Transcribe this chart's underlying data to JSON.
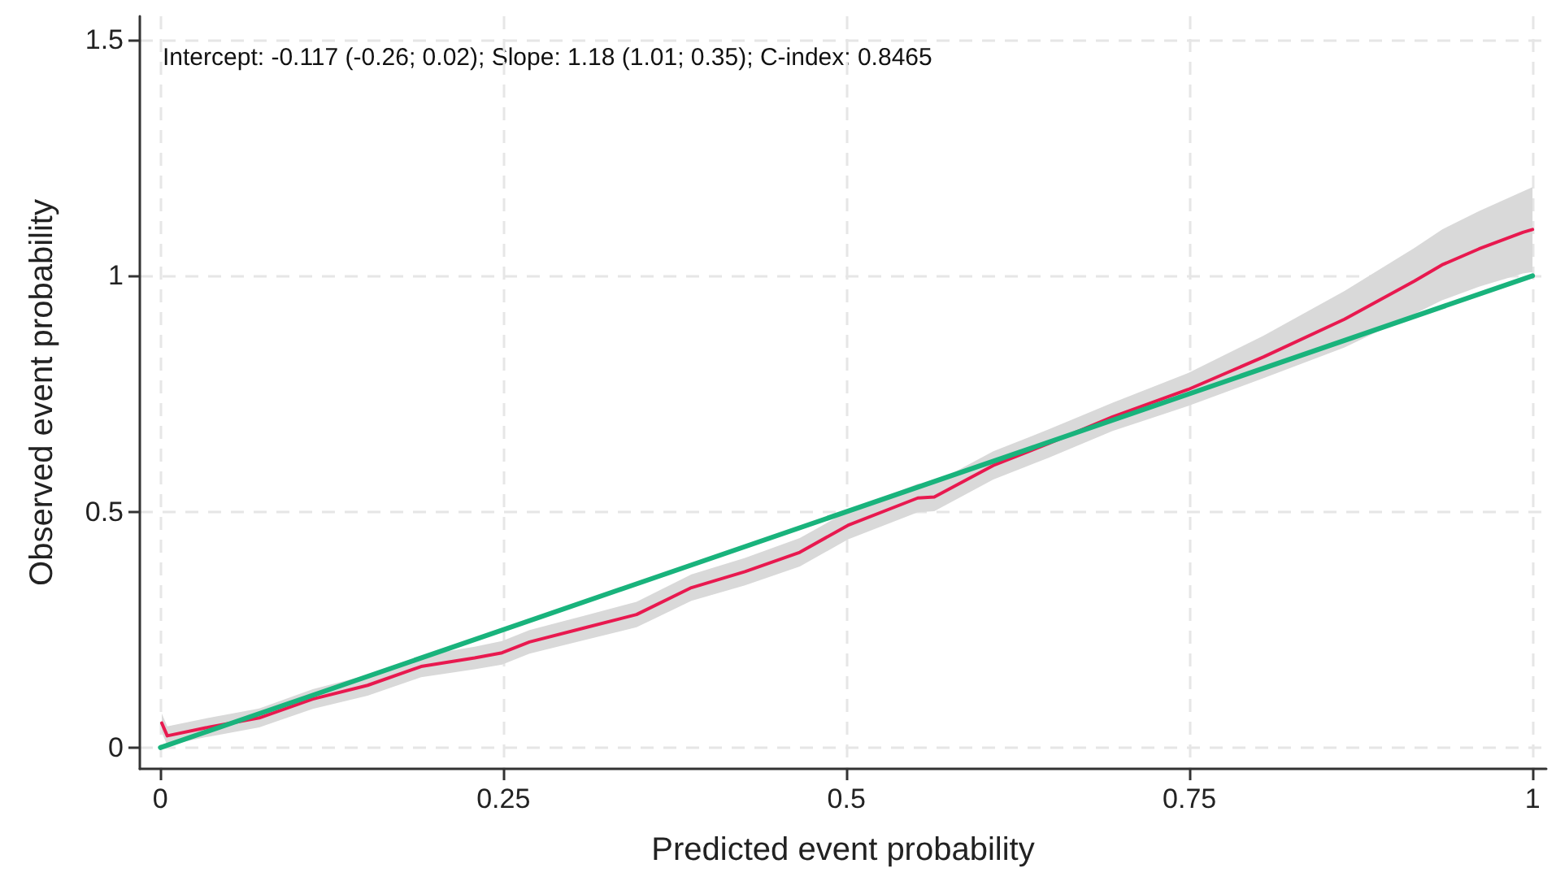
{
  "chart_data": {
    "type": "line",
    "xlabel": "Predicted event probability",
    "ylabel": "Observed event probability",
    "annotations": [
      "Intercept: -0.117 (-0.26; 0.02); Slope: 1.18 (1.01; 0.35); C-index: 0.8465"
    ],
    "series": [
      {
        "color": "#e8194f",
        "x": [
          0.001,
          0.005,
          0.033,
          0.072,
          0.111,
          0.151,
          0.19,
          0.229,
          0.249,
          0.269,
          0.308,
          0.347,
          0.387,
          0.426,
          0.466,
          0.501,
          0.552,
          0.564,
          0.607,
          0.647,
          0.694,
          0.749,
          0.804,
          0.863,
          0.914,
          0.934,
          0.961,
          0.993,
          1.0
        ],
        "values": [
          0.052,
          0.025,
          0.042,
          0.063,
          0.103,
          0.132,
          0.172,
          0.19,
          0.201,
          0.224,
          0.253,
          0.282,
          0.339,
          0.373,
          0.414,
          0.471,
          0.529,
          0.531,
          0.598,
          0.644,
          0.701,
          0.759,
          0.828,
          0.908,
          0.989,
          1.023,
          1.057,
          1.092,
          1.098
        ],
        "lower": [
          0.032,
          0.005,
          0.022,
          0.043,
          0.082,
          0.11,
          0.149,
          0.166,
          0.176,
          0.199,
          0.227,
          0.255,
          0.311,
          0.344,
          0.384,
          0.441,
          0.499,
          0.501,
          0.568,
          0.614,
          0.671,
          0.724,
          0.783,
          0.848,
          0.919,
          0.948,
          0.977,
          1.005,
          1.008
        ],
        "upper": [
          0.072,
          0.045,
          0.062,
          0.083,
          0.124,
          0.154,
          0.195,
          0.214,
          0.226,
          0.249,
          0.279,
          0.309,
          0.367,
          0.402,
          0.444,
          0.501,
          0.559,
          0.561,
          0.628,
          0.674,
          0.731,
          0.794,
          0.873,
          0.968,
          1.059,
          1.098,
          1.137,
          1.179,
          1.188
        ]
      },
      {
        "color": "#19b37c",
        "x": [
          0,
          1
        ],
        "values": [
          0,
          1
        ]
      }
    ],
    "xlim": [
      -0.015,
      1.01
    ],
    "ylim": [
      -0.045,
      1.55
    ],
    "xticks": [
      0,
      0.25,
      0.5,
      0.75,
      1
    ],
    "yticks": [
      0,
      0.5,
      1,
      1.5
    ],
    "grid": true,
    "marker": "none",
    "line_style": "solid"
  }
}
